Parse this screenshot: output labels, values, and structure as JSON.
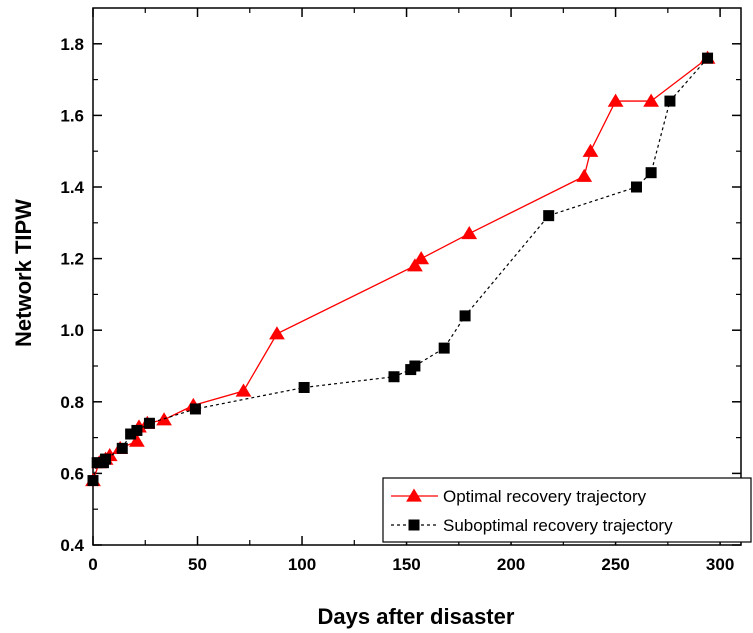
{
  "chart_data": {
    "type": "line",
    "title": "",
    "xlabel": "Days after disaster",
    "ylabel": "Network TIPW",
    "xlim": [
      0,
      310
    ],
    "ylim": [
      0.4,
      1.9
    ],
    "xticks": [
      0,
      50,
      100,
      150,
      200,
      250,
      300
    ],
    "yticks": [
      0.4,
      0.6,
      0.8,
      1.0,
      1.2,
      1.4,
      1.6,
      1.8
    ],
    "xtick_labels": [
      "0",
      "50",
      "100",
      "150",
      "200",
      "250",
      "300"
    ],
    "ytick_labels": [
      "0.4",
      "0.6",
      "0.8",
      "1.0",
      "1.2",
      "1.4",
      "1.6",
      "1.8"
    ],
    "grid": false,
    "legend_position": "bottom-right",
    "series": [
      {
        "name": "Optimal recovery trajectory",
        "color": "#ff0000",
        "marker": "triangle",
        "line_style": "solid",
        "x": [
          0,
          3,
          6,
          8,
          13,
          21,
          22,
          26,
          34,
          48,
          72,
          88,
          154,
          157,
          180,
          235,
          238,
          250,
          267,
          294
        ],
        "y": [
          0.58,
          0.63,
          0.64,
          0.65,
          0.67,
          0.69,
          0.73,
          0.74,
          0.75,
          0.79,
          0.83,
          0.99,
          1.18,
          1.2,
          1.27,
          1.43,
          1.5,
          1.64,
          1.64,
          1.76
        ]
      },
      {
        "name": "Suboptimal recovery trajectory",
        "color": "#000000",
        "marker": "square",
        "line_style": "dashed",
        "x": [
          0,
          2,
          5,
          6,
          14,
          18,
          21,
          27,
          49,
          101,
          144,
          152,
          154,
          168,
          178,
          218,
          260,
          267,
          276,
          294
        ],
        "y": [
          0.58,
          0.63,
          0.63,
          0.64,
          0.67,
          0.71,
          0.72,
          0.74,
          0.78,
          0.84,
          0.87,
          0.89,
          0.9,
          0.95,
          1.04,
          1.32,
          1.4,
          1.44,
          1.64,
          1.76
        ]
      }
    ]
  }
}
